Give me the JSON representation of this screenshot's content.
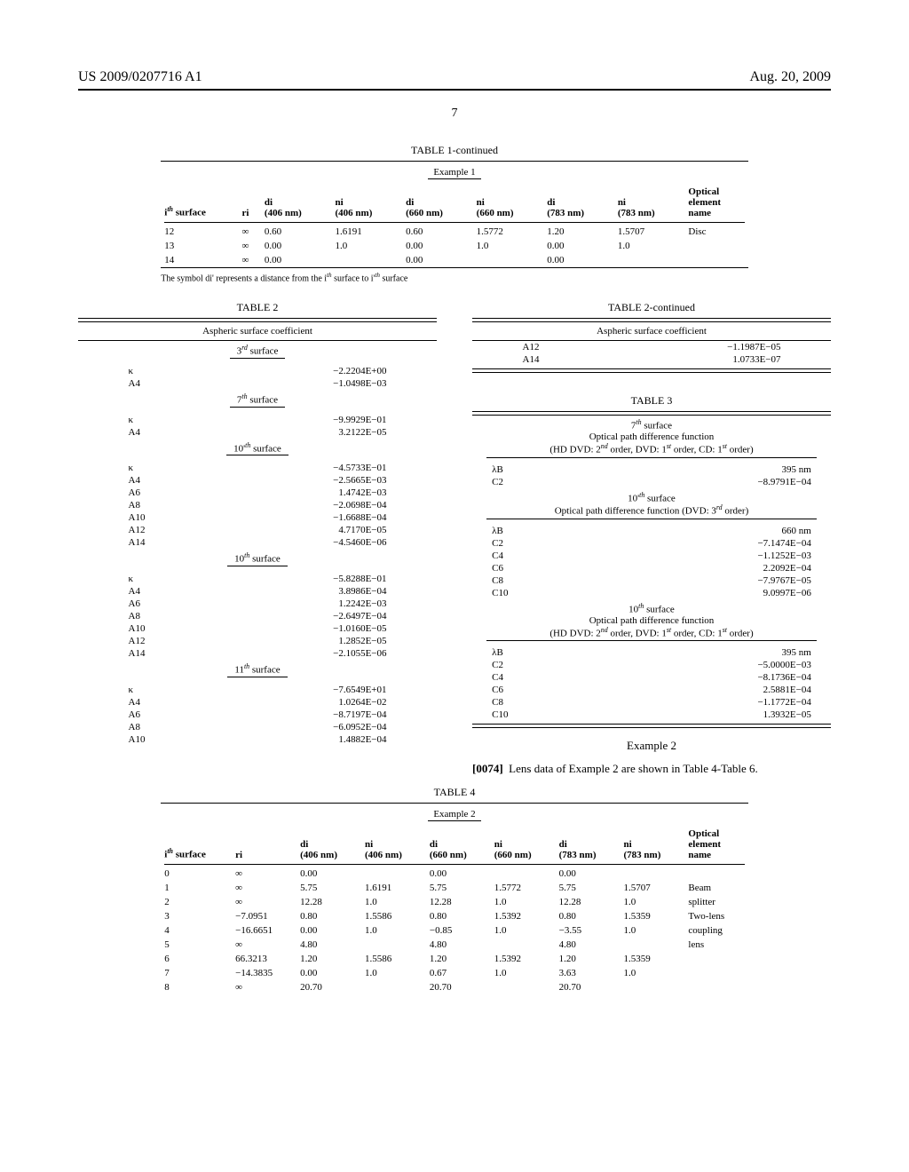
{
  "header": {
    "left": "US 2009/0207716 A1",
    "right": "Aug. 20, 2009"
  },
  "page_number": "7",
  "table1": {
    "title": "TABLE 1-continued",
    "example": "Example 1",
    "columns": [
      "iᵗʰ surface",
      "ri",
      "di (406 nm)",
      "ni (406 nm)",
      "di (660 nm)",
      "ni (660 nm)",
      "di (783 nm)",
      "ni (783 nm)",
      "Optical element name"
    ],
    "rows": [
      [
        "12",
        "∞",
        "0.60",
        "1.6191",
        "0.60",
        "1.5772",
        "1.20",
        "1.5707",
        "Disc"
      ],
      [
        "13",
        "∞",
        "0.00",
        "1.0",
        "0.00",
        "1.0",
        "0.00",
        "1.0",
        ""
      ],
      [
        "14",
        "∞",
        "0.00",
        "",
        "0.00",
        "",
        "0.00",
        "",
        ""
      ]
    ],
    "footnote": "The symbol di' represents a distance from the iᵗʰ surface to i'ᵗʰ surface"
  },
  "table2": {
    "title": "TABLE 2",
    "subtitle": "Aspheric surface coefficient",
    "sections": [
      {
        "label": "3ʳᵈ surface",
        "rows": [
          [
            "κ",
            "−2.2204E+00"
          ],
          [
            "A4",
            "−1.0498E−03"
          ]
        ]
      },
      {
        "label": "7ᵗʰ surface",
        "rows": [
          [
            "κ",
            "−9.9929E−01"
          ],
          [
            "A4",
            "3.2122E−05"
          ]
        ]
      },
      {
        "label": "10'ᵗʰ surface",
        "rows": [
          [
            "κ",
            "−4.5733E−01"
          ],
          [
            "A4",
            "−2.5665E−03"
          ],
          [
            "A6",
            "1.4742E−03"
          ],
          [
            "A8",
            "−2.0698E−04"
          ],
          [
            "A10",
            "−1.6688E−04"
          ],
          [
            "A12",
            "4.7170E−05"
          ],
          [
            "A14",
            "−4.5460E−06"
          ]
        ]
      },
      {
        "label": "10ᵗʰ surface",
        "rows": [
          [
            "κ",
            "−5.8288E−01"
          ],
          [
            "A4",
            "3.8986E−04"
          ],
          [
            "A6",
            "1.2242E−03"
          ],
          [
            "A8",
            "−2.6497E−04"
          ],
          [
            "A10",
            "−1.0160E−05"
          ],
          [
            "A12",
            "1.2852E−05"
          ],
          [
            "A14",
            "−2.1055E−06"
          ]
        ]
      },
      {
        "label": "11ᵗʰ surface",
        "rows": [
          [
            "κ",
            "−7.6549E+01"
          ],
          [
            "A4",
            "1.0264E−02"
          ],
          [
            "A6",
            "−8.7197E−04"
          ],
          [
            "A8",
            "−6.0952E−04"
          ],
          [
            "A10",
            "1.4882E−04"
          ]
        ]
      }
    ]
  },
  "table2cont": {
    "title": "TABLE 2-continued",
    "subtitle": "Aspheric surface coefficient",
    "rows": [
      [
        "A12",
        "−1.1987E−05"
      ],
      [
        "A14",
        "1.0733E−07"
      ]
    ]
  },
  "table3": {
    "title": "TABLE 3",
    "sections": [
      {
        "label": "7ᵗʰ surface",
        "caption1": "Optical path difference function",
        "caption2": "(HD DVD: 2ⁿᵈ order, DVD: 1ˢᵗ order, CD: 1ˢᵗ order)",
        "rows": [
          [
            "λB",
            "395 nm"
          ],
          [
            "C2",
            "−8.9791E−04"
          ]
        ]
      },
      {
        "label": "10'ᵗʰ surface",
        "caption1": "Optical path difference function (DVD: 3ʳᵈ order)",
        "caption2": "",
        "rows": [
          [
            "λB",
            "660 nm"
          ],
          [
            "C2",
            "−7.1474E−04"
          ],
          [
            "C4",
            "−1.1252E−03"
          ],
          [
            "C6",
            "2.2092E−04"
          ],
          [
            "C8",
            "−7.9767E−05"
          ],
          [
            "C10",
            "9.0997E−06"
          ]
        ]
      },
      {
        "label": "10ᵗʰ surface",
        "caption1": "Optical path difference function",
        "caption2": "(HD DVD: 2ⁿᵈ order, DVD: 1ˢᵗ order, CD: 1ˢᵗ order)",
        "rows": [
          [
            "λB",
            "395 nm"
          ],
          [
            "C2",
            "−5.0000E−03"
          ],
          [
            "C4",
            "−8.1736E−04"
          ],
          [
            "C6",
            "2.5881E−04"
          ],
          [
            "C8",
            "−1.1772E−04"
          ],
          [
            "C10",
            "1.3932E−05"
          ]
        ]
      }
    ]
  },
  "example2": {
    "heading": "Example 2",
    "para_num": "[0074]",
    "para_text": "Lens data of Example 2 are shown in Table 4-Table 6."
  },
  "table4": {
    "title": "TABLE 4",
    "example": "Example 2",
    "columns": [
      "iᵗʰ surface",
      "ri",
      "di (406 nm)",
      "ni (406 nm)",
      "di (660 nm)",
      "ni (660 nm)",
      "di (783 nm)",
      "ni (783 nm)",
      "Optical element name"
    ],
    "rows": [
      [
        "0",
        "∞",
        "0.00",
        "",
        "0.00",
        "",
        "0.00",
        "",
        ""
      ],
      [
        "1",
        "∞",
        "5.75",
        "1.6191",
        "5.75",
        "1.5772",
        "5.75",
        "1.5707",
        "Beam"
      ],
      [
        "2",
        "∞",
        "12.28",
        "1.0",
        "12.28",
        "1.0",
        "12.28",
        "1.0",
        "splitter"
      ],
      [
        "3",
        "−7.0951",
        "0.80",
        "1.5586",
        "0.80",
        "1.5392",
        "0.80",
        "1.5359",
        "Two-lens"
      ],
      [
        "4",
        "−16.6651",
        "0.00",
        "1.0",
        "−0.85",
        "1.0",
        "−3.55",
        "1.0",
        "coupling"
      ],
      [
        "5",
        "∞",
        "4.80",
        "",
        "4.80",
        "",
        "4.80",
        "",
        "lens"
      ],
      [
        "6",
        "66.3213",
        "1.20",
        "1.5586",
        "1.20",
        "1.5392",
        "1.20",
        "1.5359",
        ""
      ],
      [
        "7",
        "−14.3835",
        "0.00",
        "1.0",
        "0.67",
        "1.0",
        "3.63",
        "1.0",
        ""
      ],
      [
        "8",
        "∞",
        "20.70",
        "",
        "20.70",
        "",
        "20.70",
        "",
        ""
      ]
    ]
  }
}
